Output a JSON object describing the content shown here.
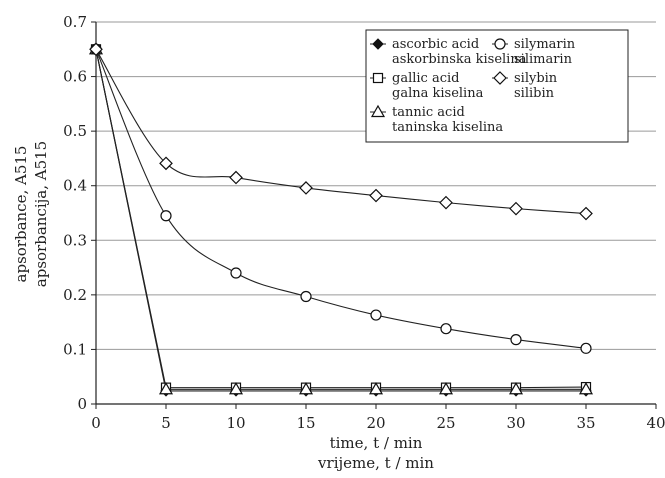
{
  "chart_data": {
    "type": "line",
    "xlabel": "time, t / min",
    "xlabel_2": "vrijeme, t / min",
    "ylabel": "apsorbance, A515",
    "ylabel_2": "apsorbancija, A515",
    "xlim": [
      0,
      40
    ],
    "ylim": [
      0,
      0.7
    ],
    "x_ticks": [
      0,
      5,
      10,
      15,
      20,
      25,
      30,
      35,
      40
    ],
    "y_ticks": [
      0,
      0.1,
      0.2,
      0.3,
      0.4,
      0.5,
      0.6,
      0.7
    ],
    "y_tick_labels": [
      "0",
      "0.1",
      "0.2",
      "0.3",
      "0.4",
      "0.5",
      "0.6",
      "0.7"
    ],
    "grid": "horizontal",
    "legend_position": "top-right",
    "x": [
      0,
      5,
      10,
      15,
      20,
      25,
      30,
      35
    ],
    "series": [
      {
        "name": "ascorbic acid",
        "name_2": "askorbinska kiselina",
        "marker": "filled-diamond",
        "values": [
          0.65,
          0.024,
          0.024,
          0.024,
          0.024,
          0.024,
          0.024,
          0.024
        ]
      },
      {
        "name": "gallic acid",
        "name_2": "galna kiselina",
        "marker": "square",
        "values": [
          0.65,
          0.03,
          0.03,
          0.03,
          0.03,
          0.03,
          0.03,
          0.031
        ]
      },
      {
        "name": "tannic acid",
        "name_2": "taninska kiselina",
        "marker": "triangle",
        "values": [
          0.65,
          0.027,
          0.027,
          0.027,
          0.027,
          0.027,
          0.027,
          0.027
        ]
      },
      {
        "name": "silymarin",
        "name_2": "silimarin",
        "marker": "circle",
        "values": [
          0.65,
          0.345,
          0.24,
          0.197,
          0.163,
          0.138,
          0.118,
          0.102
        ]
      },
      {
        "name": "silybin",
        "name_2": "silibin",
        "marker": "diamond",
        "values": [
          0.65,
          0.441,
          0.415,
          0.396,
          0.382,
          0.369,
          0.358,
          0.349
        ]
      }
    ]
  }
}
